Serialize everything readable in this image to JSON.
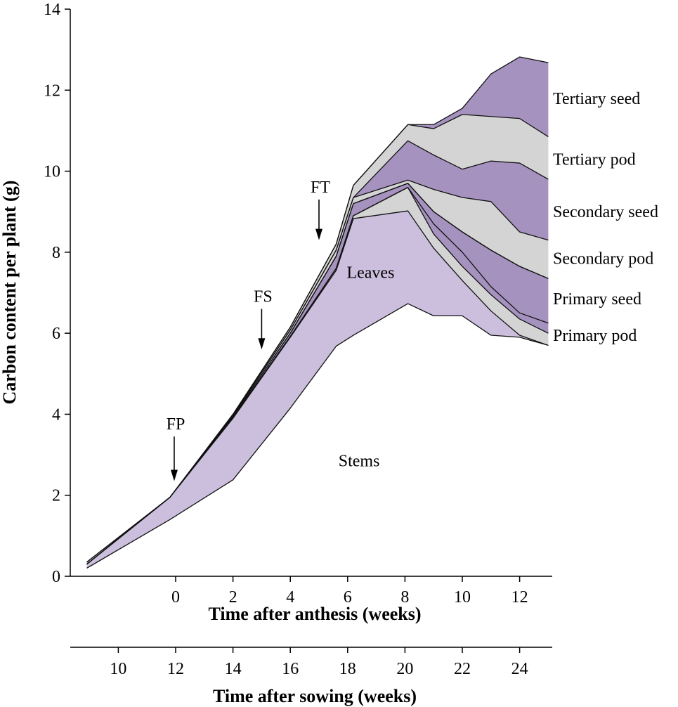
{
  "chart_data": {
    "type": "area",
    "stacked": true,
    "ylabel": "Carbon content per plant (g)",
    "xlabel": "Time after anthesis (weeks)",
    "x2label": "Time after sowing (weeks)",
    "ylim": [
      0,
      14
    ],
    "yticks": [
      0,
      2,
      4,
      6,
      8,
      10,
      12,
      14
    ],
    "x_anthesis_ticks": [
      0,
      2,
      4,
      6,
      8,
      10,
      12
    ],
    "x_sowing_ticks": [
      10,
      12,
      14,
      16,
      18,
      20,
      22,
      24
    ],
    "x_anthesis_range": [
      -3.7,
      13.0
    ],
    "x_sowing_offset": 12,
    "x": [
      -3.1,
      -0.2,
      2.0,
      4.0,
      5.6,
      6.2,
      8.1,
      9.0,
      10.0,
      11.0,
      12.0,
      13.0
    ],
    "cumulative": [
      {
        "name": "Stems",
        "values": [
          0.2,
          1.4,
          2.38,
          4.15,
          5.68,
          5.95,
          6.73,
          6.43,
          6.43,
          5.95,
          5.9,
          5.7
        ]
      },
      {
        "name": "Leaves",
        "values": [
          0.3,
          1.95,
          3.9,
          5.9,
          7.55,
          8.83,
          9.02,
          8.1,
          7.3,
          6.55,
          5.95,
          5.7
        ]
      },
      {
        "name": "Primary pod",
        "values": [
          0.3,
          1.95,
          3.92,
          5.92,
          7.6,
          8.9,
          9.6,
          8.45,
          7.65,
          6.95,
          6.35,
          6.0
        ]
      },
      {
        "name": "Primary seed",
        "values": [
          0.3,
          1.95,
          3.92,
          5.92,
          7.6,
          8.9,
          9.6,
          8.7,
          8.0,
          7.15,
          6.5,
          6.25
        ]
      },
      {
        "name": "Secondary pod",
        "values": [
          0.3,
          1.95,
          3.95,
          6.0,
          7.9,
          9.2,
          9.7,
          9.0,
          8.5,
          8.05,
          7.65,
          7.35
        ]
      },
      {
        "name": "Secondary seed",
        "values": [
          0.3,
          1.95,
          3.95,
          6.0,
          7.9,
          9.2,
          9.7,
          9.0,
          8.5,
          8.05,
          7.65,
          7.35
        ]
      },
      {
        "name": "Tertiary pod",
        "values": [
          0.3,
          1.95,
          3.98,
          6.08,
          8.05,
          9.35,
          9.78,
          9.55,
          9.35,
          9.25,
          8.5,
          8.3
        ]
      },
      {
        "name": "Tertiary seed",
        "values": [
          0.3,
          1.95,
          3.98,
          6.08,
          8.05,
          9.35,
          10.75,
          10.4,
          10.05,
          10.25,
          10.2,
          9.8
        ]
      },
      {
        "name": "Top (Tertiary pod)",
        "values": [
          0.35,
          1.95,
          4.0,
          6.15,
          8.2,
          9.65,
          11.15,
          11.05,
          11.4,
          11.35,
          11.3,
          10.85
        ]
      },
      {
        "name": "Top (Tertiary seed)",
        "values": [
          0.35,
          1.95,
          4.0,
          6.15,
          8.2,
          9.65,
          11.15,
          11.15,
          11.55,
          12.4,
          12.82,
          12.68
        ]
      }
    ],
    "layers": [
      {
        "name": "Leaves",
        "lower": 0,
        "upper": 1,
        "color": "#cbbfdd"
      },
      {
        "name": "Primary pod",
        "lower": 1,
        "upper": 2,
        "color": "#d4d4d4"
      },
      {
        "name": "Primary seed",
        "lower": 2,
        "upper": 4,
        "color": "#a592bf"
      },
      {
        "name": "Secondary pod",
        "lower": 4,
        "upper": 6,
        "color": "#d4d4d4"
      },
      {
        "name": "Secondary seed",
        "lower": 6,
        "upper": 7,
        "color": "#a592bf"
      },
      {
        "name": "Tertiary pod",
        "lower": 7,
        "upper": 8,
        "color": "#d4d4d4"
      },
      {
        "name": "Tertiary seed",
        "lower": 8,
        "upper": 9,
        "color": "#a592bf"
      }
    ],
    "legend": [
      {
        "label": "Tertiary seed",
        "y": 11.8
      },
      {
        "label": "Tertiary pod",
        "y": 10.3
      },
      {
        "label": "Secondary seed",
        "y": 9.0
      },
      {
        "label": "Secondary pod",
        "y": 7.85
      },
      {
        "label": "Primary seed",
        "y": 6.85
      },
      {
        "label": "Primary pod",
        "y": 5.95
      }
    ],
    "region_labels": [
      {
        "label": "Leaves",
        "x": 6.8,
        "y": 7.5
      },
      {
        "label": "Stems",
        "x": 6.4,
        "y": 2.85
      }
    ],
    "annotations": [
      {
        "label": "FP",
        "x": -0.05,
        "y_arrow_tip": 2.35,
        "y_arrow_start": 3.45
      },
      {
        "label": "FS",
        "x": 3.0,
        "y_arrow_tip": 5.6,
        "y_arrow_start": 6.6
      },
      {
        "label": "FT",
        "x": 5.0,
        "y_arrow_tip": 8.3,
        "y_arrow_start": 9.3
      }
    ]
  }
}
